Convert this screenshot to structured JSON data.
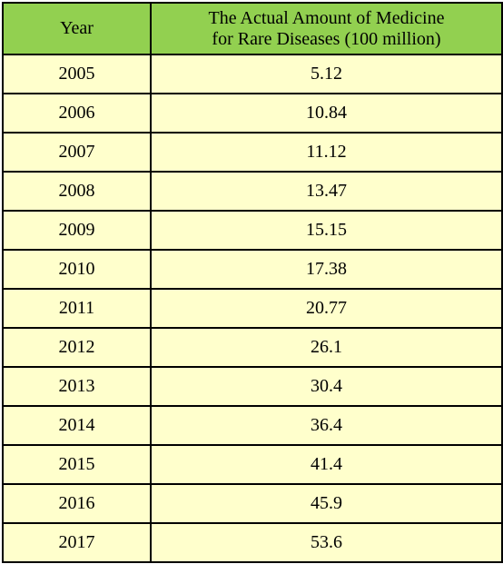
{
  "chart_data": {
    "type": "table",
    "columns": [
      "Year",
      "The Actual Amount of Medicine for Rare Diseases (100 million)"
    ],
    "header_lines": {
      "year": "Year",
      "amount_line1": "The Actual Amount of Medicine",
      "amount_line2": "for Rare Diseases (100 million)"
    },
    "rows": [
      [
        "2005",
        "5.12"
      ],
      [
        "2006",
        "10.84"
      ],
      [
        "2007",
        "11.12"
      ],
      [
        "2008",
        "13.47"
      ],
      [
        "2009",
        "15.15"
      ],
      [
        "2010",
        "17.38"
      ],
      [
        "2011",
        "20.77"
      ],
      [
        "2012",
        "26.1"
      ],
      [
        "2013",
        "30.4"
      ],
      [
        "2014",
        "36.4"
      ],
      [
        "2015",
        "41.4"
      ],
      [
        "2016",
        "45.9"
      ],
      [
        "2017",
        "53.6"
      ]
    ],
    "x": [
      2005,
      2006,
      2007,
      2008,
      2009,
      2010,
      2011,
      2012,
      2013,
      2014,
      2015,
      2016,
      2017
    ],
    "values": [
      5.12,
      10.84,
      11.12,
      13.47,
      15.15,
      17.38,
      20.77,
      26.1,
      30.4,
      36.4,
      41.4,
      45.9,
      53.6
    ]
  },
  "colors": {
    "header_bg": "#92d050",
    "cell_bg": "#ffffcc",
    "border": "#000000"
  }
}
